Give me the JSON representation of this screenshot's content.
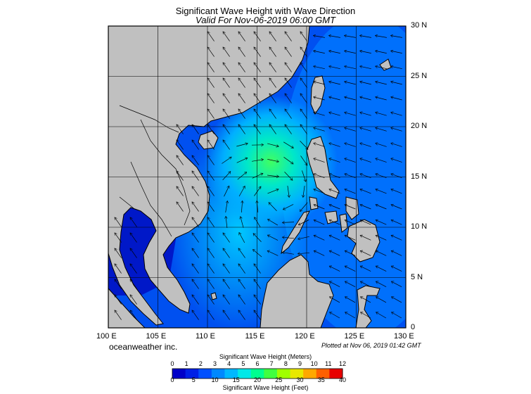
{
  "title": "Significant Wave Height with Wave Direction",
  "subtitle": "Valid For Nov-06-2019 06:00 GMT",
  "lon_labels": [
    "100 E",
    "105 E",
    "110 E",
    "115 E",
    "120 E",
    "125 E",
    "130 E"
  ],
  "lat_labels": [
    "30 N",
    "25 N",
    "20 N",
    "15 N",
    "10 N",
    "5 N",
    "0"
  ],
  "credit": "oceanweather inc.",
  "plotted": "Plotted at Nov 06, 2019 01:42 GMT",
  "colorbar": {
    "meters_title": "Significant Wave Height (Meters)",
    "feet_title": "Significant Wave Height (Feet)",
    "meters_ticks": [
      "0",
      "1",
      "2",
      "3",
      "4",
      "5",
      "6",
      "7",
      "8",
      "9",
      "10",
      "11",
      "12"
    ],
    "feet_ticks": [
      "0",
      "5",
      "10",
      "15",
      "20",
      "25",
      "30",
      "35",
      "40"
    ],
    "colors": [
      "#0000c8",
      "#0020e6",
      "#0050ff",
      "#0088ff",
      "#00b8ff",
      "#00e8e8",
      "#00ff90",
      "#40ff40",
      "#a0ff00",
      "#e8e800",
      "#ffa800",
      "#ff6000",
      "#e80000"
    ]
  },
  "map": {
    "lon_range": [
      100,
      130
    ],
    "lat_range": [
      0,
      30
    ],
    "land_color": "#c0c0c0",
    "peak_wave_height_m": 5,
    "peak_location": [
      115,
      17.5
    ]
  }
}
